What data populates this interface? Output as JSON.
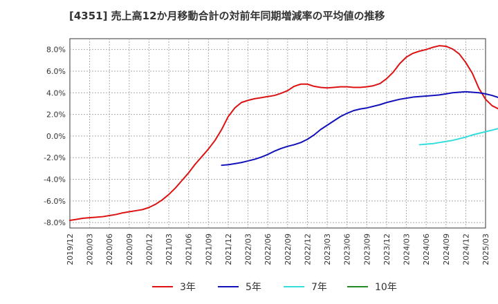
{
  "chart_data": {
    "type": "line",
    "title": "[4351]  売上高12か月移動合計の対前年同期増減率の平均値の推移",
    "xlabel": "",
    "ylabel": "",
    "ylim": [
      -8.5,
      9.0
    ],
    "yticks": [
      -8.0,
      -6.0,
      -4.0,
      -2.0,
      0.0,
      2.0,
      4.0,
      6.0,
      8.0
    ],
    "ytick_labels": [
      "-8.0%",
      "-6.0%",
      "-4.0%",
      "-2.0%",
      "0.0%",
      "2.0%",
      "4.0%",
      "6.0%",
      "8.0%"
    ],
    "xtick_labels": [
      "2019/12",
      "2020/03",
      "2020/06",
      "2020/09",
      "2020/12",
      "2021/03",
      "2021/06",
      "2021/09",
      "2021/12",
      "2022/03",
      "2022/06",
      "2022/09",
      "2022/12",
      "2023/03",
      "2023/06",
      "2023/09",
      "2023/12",
      "2024/03",
      "2024/06",
      "2024/09",
      "2024/12",
      "2025/03"
    ],
    "x_start": "2019/12",
    "x_months": 63,
    "grid": true,
    "series": [
      {
        "name": "3年",
        "color": "#dd1111",
        "start_index": 0,
        "values": [
          -7.8,
          -7.7,
          -7.6,
          -7.55,
          -7.5,
          -7.45,
          -7.35,
          -7.25,
          -7.1,
          -7.0,
          -6.9,
          -6.8,
          -6.6,
          -6.3,
          -5.9,
          -5.4,
          -4.8,
          -4.1,
          -3.4,
          -2.6,
          -1.9,
          -1.2,
          -0.4,
          0.6,
          1.8,
          2.6,
          3.1,
          3.3,
          3.45,
          3.55,
          3.65,
          3.75,
          3.95,
          4.2,
          4.6,
          4.8,
          4.8,
          4.6,
          4.5,
          4.45,
          4.5,
          4.55,
          4.55,
          4.5,
          4.5,
          4.55,
          4.65,
          4.85,
          5.3,
          5.9,
          6.7,
          7.3,
          7.65,
          7.85,
          8.0,
          8.2,
          8.35,
          8.3,
          8.05,
          7.6,
          6.8,
          5.8,
          4.4,
          3.4,
          2.8,
          2.5
        ]
      },
      {
        "name": "5年",
        "color": "#1111bb",
        "start_index": 23,
        "values": [
          -2.7,
          -2.65,
          -2.55,
          -2.45,
          -2.3,
          -2.15,
          -1.95,
          -1.7,
          -1.4,
          -1.15,
          -0.95,
          -0.8,
          -0.6,
          -0.3,
          0.1,
          0.6,
          1.0,
          1.4,
          1.8,
          2.1,
          2.35,
          2.5,
          2.6,
          2.75,
          2.9,
          3.1,
          3.25,
          3.4,
          3.5,
          3.6,
          3.65,
          3.7,
          3.75,
          3.8,
          3.9,
          4.0,
          4.05,
          4.1,
          4.05,
          4.0,
          3.9,
          3.75,
          3.55
        ]
      },
      {
        "name": "7年",
        "color": "#33dddd",
        "start_index": 53,
        "values": [
          -0.8,
          -0.75,
          -0.7,
          -0.6,
          -0.5,
          -0.4,
          -0.25,
          -0.1,
          0.1,
          0.25,
          0.4,
          0.55,
          0.7,
          0.85
        ]
      },
      {
        "name": "10年",
        "color": "#228822",
        "start_index": 0,
        "values": []
      }
    ]
  }
}
